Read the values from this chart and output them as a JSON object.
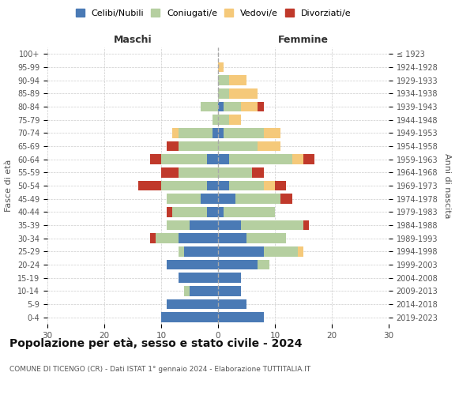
{
  "age_groups": [
    "0-4",
    "5-9",
    "10-14",
    "15-19",
    "20-24",
    "25-29",
    "30-34",
    "35-39",
    "40-44",
    "45-49",
    "50-54",
    "55-59",
    "60-64",
    "65-69",
    "70-74",
    "75-79",
    "80-84",
    "85-89",
    "90-94",
    "95-99",
    "100+"
  ],
  "birth_years": [
    "2019-2023",
    "2014-2018",
    "2009-2013",
    "2004-2008",
    "1999-2003",
    "1994-1998",
    "1989-1993",
    "1984-1988",
    "1979-1983",
    "1974-1978",
    "1969-1973",
    "1964-1968",
    "1959-1963",
    "1954-1958",
    "1949-1953",
    "1944-1948",
    "1939-1943",
    "1934-1938",
    "1929-1933",
    "1924-1928",
    "≤ 1923"
  ],
  "male": {
    "celibi": [
      10,
      9,
      5,
      7,
      9,
      6,
      7,
      5,
      2,
      3,
      2,
      0,
      2,
      0,
      1,
      0,
      0,
      0,
      0,
      0,
      0
    ],
    "coniugati": [
      0,
      0,
      1,
      0,
      0,
      1,
      4,
      4,
      6,
      6,
      8,
      7,
      8,
      7,
      6,
      1,
      3,
      0,
      0,
      0,
      0
    ],
    "vedovi": [
      0,
      0,
      0,
      0,
      0,
      0,
      0,
      0,
      0,
      0,
      0,
      0,
      0,
      0,
      1,
      0,
      0,
      0,
      0,
      0,
      0
    ],
    "divorziati": [
      0,
      0,
      0,
      0,
      0,
      0,
      1,
      0,
      1,
      0,
      4,
      3,
      2,
      2,
      0,
      0,
      0,
      0,
      0,
      0,
      0
    ]
  },
  "female": {
    "nubili": [
      8,
      5,
      4,
      4,
      7,
      8,
      5,
      4,
      1,
      3,
      2,
      0,
      2,
      0,
      1,
      0,
      1,
      0,
      0,
      0,
      0
    ],
    "coniugate": [
      0,
      0,
      0,
      0,
      2,
      6,
      7,
      11,
      9,
      8,
      6,
      6,
      11,
      7,
      7,
      2,
      3,
      2,
      2,
      0,
      0
    ],
    "vedove": [
      0,
      0,
      0,
      0,
      0,
      1,
      0,
      0,
      0,
      0,
      2,
      0,
      2,
      4,
      3,
      2,
      3,
      5,
      3,
      1,
      0
    ],
    "divorziate": [
      0,
      0,
      0,
      0,
      0,
      0,
      0,
      1,
      0,
      2,
      2,
      2,
      2,
      0,
      0,
      0,
      1,
      0,
      0,
      0,
      0
    ]
  },
  "colors": {
    "celibi": "#4a7ab5",
    "coniugati": "#b5cfa0",
    "vedovi": "#f5c97a",
    "divorziati": "#c0392b"
  },
  "title": "Popolazione per età, sesso e stato civile - 2024",
  "subtitle": "COMUNE DI TICENGO (CR) - Dati ISTAT 1° gennaio 2024 - Elaborazione TUTTITALIA.IT",
  "xlabel_left": "Maschi",
  "xlabel_right": "Femmine",
  "ylabel_left": "Fasce di età",
  "ylabel_right": "Anni di nascita",
  "xlim": 30,
  "legend_labels": [
    "Celibi/Nubili",
    "Coniugati/e",
    "Vedovi/e",
    "Divorziati/e"
  ]
}
